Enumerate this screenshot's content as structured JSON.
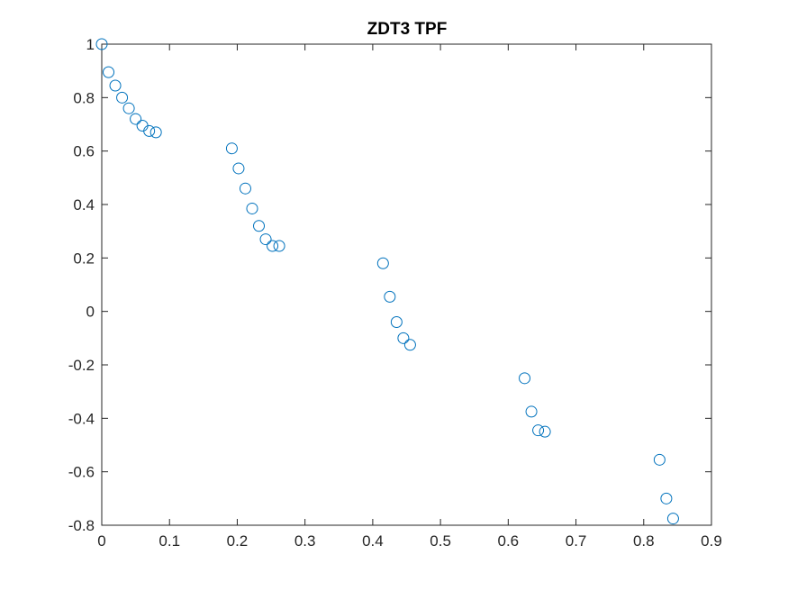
{
  "chart_data": {
    "type": "scatter",
    "title": "ZDT3 TPF",
    "xlabel": "",
    "ylabel": "",
    "xlim": [
      0,
      0.9
    ],
    "ylim": [
      -0.8,
      1
    ],
    "xticks": [
      0,
      0.1,
      0.2,
      0.3,
      0.4,
      0.5,
      0.6,
      0.7,
      0.8,
      0.9
    ],
    "xtick_labels": [
      "0",
      "0.1",
      "0.2",
      "0.3",
      "0.4",
      "0.5",
      "0.6",
      "0.7",
      "0.8",
      "0.9"
    ],
    "yticks": [
      -0.8,
      -0.6,
      -0.4,
      -0.2,
      0,
      0.2,
      0.4,
      0.6,
      0.8,
      1
    ],
    "ytick_labels": [
      "-0.8",
      "-0.6",
      "-0.4",
      "-0.2",
      "0",
      "0.2",
      "0.4",
      "0.6",
      "0.8",
      "1"
    ],
    "grid": false,
    "marker": "open-circle",
    "marker_color": "#0072BD",
    "axis_color": "#262626",
    "series": [
      {
        "x": [
          0,
          0.01,
          0.02,
          0.03,
          0.04,
          0.05,
          0.06,
          0.07,
          0.08,
          0.192,
          0.202,
          0.212,
          0.222,
          0.232,
          0.242,
          0.252,
          0.262,
          0.4152,
          0.4252,
          0.4352,
          0.4452,
          0.4552,
          0.6242,
          0.6342,
          0.6442,
          0.6542,
          0.8234,
          0.8334,
          0.8434
        ],
        "y": [
          1.0,
          0.895,
          0.845,
          0.8,
          0.76,
          0.72,
          0.695,
          0.675,
          0.67,
          0.61,
          0.535,
          0.46,
          0.385,
          0.32,
          0.27,
          0.245,
          0.245,
          0.18,
          0.055,
          -0.04,
          -0.1,
          -0.125,
          -0.25,
          -0.375,
          -0.445,
          -0.45,
          -0.555,
          -0.7,
          -0.775
        ]
      }
    ]
  }
}
